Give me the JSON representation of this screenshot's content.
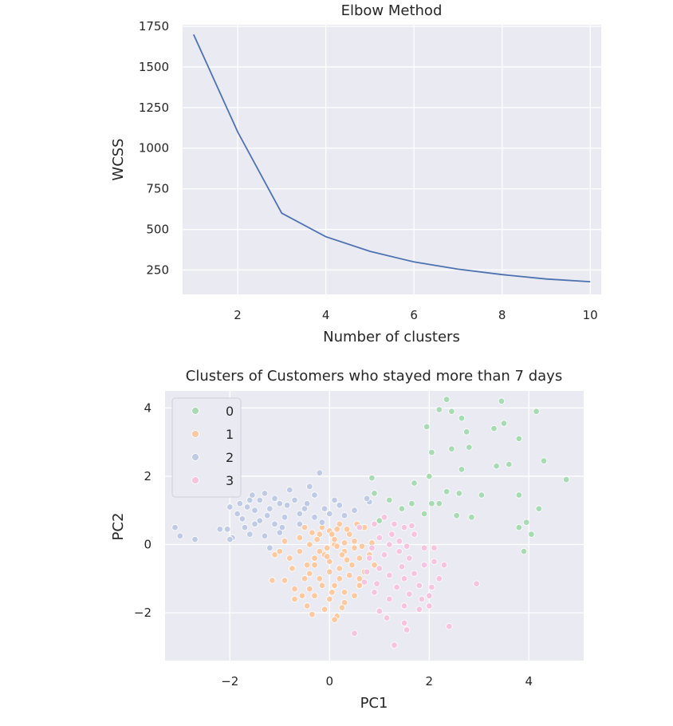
{
  "chart_data": [
    {
      "type": "line",
      "title": "Elbow Method",
      "xlabel": "Number of clusters",
      "ylabel": "WCSS",
      "xlim": [
        0.75,
        10.25
      ],
      "ylim": [
        100,
        1760
      ],
      "xticks": [
        2,
        4,
        6,
        8,
        10
      ],
      "yticks": [
        250,
        500,
        750,
        1000,
        1250,
        1500,
        1750
      ],
      "x": [
        1,
        2,
        3,
        4,
        5,
        6,
        7,
        8,
        9,
        10
      ],
      "values": [
        1700,
        1100,
        600,
        455,
        365,
        300,
        255,
        222,
        195,
        178
      ],
      "grid": true,
      "color": "#4c72b0"
    },
    {
      "type": "scatter",
      "title": "Clusters of Customers who stayed more than 7 days",
      "xlabel": "PC1",
      "ylabel": "PC2",
      "xlim": [
        -3.3,
        5.1
      ],
      "ylim": [
        -3.4,
        4.5
      ],
      "xticks": [
        -2,
        0,
        2,
        4
      ],
      "yticks": [
        -2,
        0,
        2,
        4
      ],
      "xtick_labels": [
        "−2",
        "0",
        "2",
        "4"
      ],
      "ytick_labels": [
        "−2",
        "0",
        "2",
        "4"
      ],
      "legend": {
        "placement": "upper-left",
        "labels": [
          "0",
          "1",
          "2",
          "3"
        ]
      },
      "grid": true,
      "series": [
        {
          "name": "0",
          "color": "#a8dbb4",
          "points": [
            [
              2.35,
              4.25
            ],
            [
              2.2,
              3.95
            ],
            [
              2.45,
              3.9
            ],
            [
              3.45,
              4.2
            ],
            [
              4.15,
              3.9
            ],
            [
              1.95,
              3.45
            ],
            [
              2.65,
              3.7
            ],
            [
              3.5,
              3.55
            ],
            [
              3.3,
              3.4
            ],
            [
              2.75,
              3.3
            ],
            [
              3.8,
              3.1
            ],
            [
              2.05,
              2.7
            ],
            [
              2.45,
              2.8
            ],
            [
              2.8,
              2.85
            ],
            [
              3.35,
              2.3
            ],
            [
              3.6,
              2.35
            ],
            [
              4.3,
              2.45
            ],
            [
              4.75,
              1.9
            ],
            [
              2.0,
              2.0
            ],
            [
              2.65,
              2.2
            ],
            [
              1.7,
              1.8
            ],
            [
              0.85,
              1.95
            ],
            [
              0.9,
              1.5
            ],
            [
              2.35,
              1.55
            ],
            [
              2.6,
              1.5
            ],
            [
              3.05,
              1.45
            ],
            [
              3.8,
              1.45
            ],
            [
              1.2,
              1.3
            ],
            [
              1.65,
              1.2
            ],
            [
              2.05,
              1.2
            ],
            [
              2.2,
              1.2
            ],
            [
              4.2,
              1.05
            ],
            [
              1.45,
              1.05
            ],
            [
              2.55,
              0.85
            ],
            [
              2.85,
              0.8
            ],
            [
              3.95,
              0.65
            ],
            [
              3.8,
              0.5
            ],
            [
              4.05,
              0.3
            ],
            [
              3.9,
              -0.2
            ],
            [
              1.0,
              0.7
            ],
            [
              1.9,
              0.9
            ]
          ]
        },
        {
          "name": "1",
          "color": "#fcc9a1",
          "points": [
            [
              0.0,
              0.4
            ],
            [
              0.2,
              0.6
            ],
            [
              -0.2,
              0.3
            ],
            [
              0.4,
              0.3
            ],
            [
              -0.4,
              0.0
            ],
            [
              0.1,
              0.0
            ],
            [
              0.3,
              -0.2
            ],
            [
              -0.1,
              -0.3
            ],
            [
              0.5,
              -0.1
            ],
            [
              -0.6,
              -0.2
            ],
            [
              0.0,
              -0.5
            ],
            [
              0.2,
              -0.7
            ],
            [
              -0.3,
              -0.6
            ],
            [
              0.6,
              -0.4
            ],
            [
              -0.8,
              -0.4
            ],
            [
              0.4,
              -0.9
            ],
            [
              -0.2,
              -1.0
            ],
            [
              0.1,
              -1.2
            ],
            [
              0.3,
              -1.4
            ],
            [
              -0.4,
              -1.3
            ],
            [
              0.0,
              -1.6
            ],
            [
              -0.1,
              -1.9
            ],
            [
              0.15,
              -2.1
            ],
            [
              -0.45,
              -1.8
            ],
            [
              0.7,
              0.5
            ],
            [
              0.5,
              0.1
            ],
            [
              -0.5,
              0.5
            ],
            [
              -0.9,
              0.1
            ],
            [
              -1.0,
              -0.2
            ],
            [
              -1.15,
              -1.05
            ],
            [
              -0.9,
              -1.05
            ],
            [
              -0.7,
              -1.3
            ],
            [
              0.6,
              -1.2
            ],
            [
              0.7,
              -0.8
            ],
            [
              0.8,
              -0.3
            ],
            [
              -0.25,
              0.15
            ],
            [
              0.05,
              0.3
            ],
            [
              -0.05,
              -0.1
            ],
            [
              0.25,
              -0.3
            ],
            [
              -0.3,
              -0.4
            ],
            [
              0.15,
              -0.05
            ],
            [
              0.35,
              0.45
            ],
            [
              -0.15,
              0.5
            ],
            [
              0.55,
              0.6
            ],
            [
              -0.6,
              0.2
            ],
            [
              -0.75,
              -0.7
            ],
            [
              -0.5,
              -1.0
            ],
            [
              -0.3,
              -1.5
            ],
            [
              0.3,
              -1.7
            ],
            [
              0.5,
              -1.5
            ],
            [
              0.0,
              -0.8
            ],
            [
              0.2,
              -1.0
            ],
            [
              -0.2,
              -0.2
            ],
            [
              0.45,
              -0.6
            ],
            [
              -0.45,
              -0.6
            ],
            [
              0.1,
              0.15
            ],
            [
              -0.05,
              -0.35
            ],
            [
              0.3,
              0.05
            ],
            [
              0.65,
              -0.05
            ],
            [
              -1.1,
              -0.3
            ],
            [
              -0.35,
              -2.05
            ],
            [
              0.1,
              -2.2
            ],
            [
              -0.7,
              -1.6
            ],
            [
              0.85,
              0.05
            ],
            [
              0.9,
              -0.6
            ],
            [
              0.25,
              -1.85
            ],
            [
              -0.55,
              -1.5
            ],
            [
              0.6,
              -1.0
            ],
            [
              -0.15,
              -1.2
            ],
            [
              0.15,
              0.45
            ],
            [
              -0.35,
              0.35
            ],
            [
              0.35,
              -0.45
            ],
            [
              -0.4,
              -0.85
            ],
            [
              0.05,
              -1.4
            ]
          ]
        },
        {
          "name": "2",
          "color": "#bfcbe4",
          "points": [
            [
              -2.0,
              1.1
            ],
            [
              -1.8,
              1.2
            ],
            [
              -1.6,
              1.3
            ],
            [
              -1.3,
              1.5
            ],
            [
              -1.85,
              0.9
            ],
            [
              -1.5,
              1.0
            ],
            [
              -1.2,
              1.05
            ],
            [
              -1.0,
              1.2
            ],
            [
              -0.8,
              1.6
            ],
            [
              -0.3,
              1.45
            ],
            [
              -0.2,
              2.1
            ],
            [
              -0.4,
              1.7
            ],
            [
              -0.7,
              1.3
            ],
            [
              -0.5,
              1.05
            ],
            [
              -0.1,
              1.05
            ],
            [
              0.2,
              1.15
            ],
            [
              0.5,
              1.0
            ],
            [
              0.8,
              1.25
            ],
            [
              0.75,
              1.35
            ],
            [
              -2.05,
              0.45
            ],
            [
              -1.7,
              0.5
            ],
            [
              -1.4,
              0.7
            ],
            [
              -1.1,
              0.6
            ],
            [
              -0.9,
              0.8
            ],
            [
              -0.6,
              0.9
            ],
            [
              -0.3,
              0.8
            ],
            [
              0.0,
              0.9
            ],
            [
              0.3,
              0.85
            ],
            [
              -1.95,
              0.2
            ],
            [
              -1.6,
              0.3
            ],
            [
              -1.3,
              0.25
            ],
            [
              -1.0,
              0.35
            ],
            [
              -3.1,
              0.5
            ],
            [
              -3.0,
              0.25
            ],
            [
              -2.7,
              0.15
            ],
            [
              -2.2,
              0.45
            ],
            [
              -2.0,
              0.15
            ],
            [
              -1.2,
              -0.1
            ],
            [
              -0.6,
              0.6
            ],
            [
              -1.5,
              0.6
            ],
            [
              -1.75,
              0.75
            ],
            [
              -1.1,
              1.35
            ],
            [
              -1.4,
              1.3
            ],
            [
              -0.95,
              0.5
            ],
            [
              -1.25,
              0.85
            ],
            [
              -1.65,
              1.1
            ],
            [
              -0.45,
              1.2
            ],
            [
              0.1,
              1.3
            ],
            [
              -1.55,
              1.45
            ],
            [
              -0.85,
              1.15
            ],
            [
              -0.15,
              0.65
            ]
          ]
        },
        {
          "name": "3",
          "color": "#f6c4df",
          "points": [
            [
              0.9,
              0.6
            ],
            [
              1.1,
              0.8
            ],
            [
              1.3,
              0.6
            ],
            [
              1.5,
              0.5
            ],
            [
              1.7,
              0.3
            ],
            [
              1.0,
              0.2
            ],
            [
              1.2,
              0.0
            ],
            [
              1.4,
              -0.2
            ],
            [
              1.6,
              -0.4
            ],
            [
              1.9,
              -0.1
            ],
            [
              2.1,
              -0.5
            ],
            [
              0.8,
              -0.4
            ],
            [
              1.0,
              -0.7
            ],
            [
              1.2,
              -0.9
            ],
            [
              1.5,
              -1.0
            ],
            [
              1.8,
              -1.2
            ],
            [
              2.0,
              -1.5
            ],
            [
              0.7,
              -1.1
            ],
            [
              0.9,
              -1.4
            ],
            [
              1.2,
              -1.6
            ],
            [
              1.5,
              -1.8
            ],
            [
              1.8,
              -1.9
            ],
            [
              2.0,
              -1.8
            ],
            [
              1.5,
              -2.3
            ],
            [
              1.55,
              -2.5
            ],
            [
              1.3,
              -2.95
            ],
            [
              0.5,
              -2.6
            ],
            [
              2.4,
              -2.4
            ],
            [
              2.95,
              -1.15
            ],
            [
              2.3,
              -0.6
            ],
            [
              2.1,
              -0.1
            ],
            [
              1.65,
              0.55
            ],
            [
              1.4,
              0.1
            ],
            [
              1.9,
              -0.6
            ],
            [
              1.1,
              -0.3
            ],
            [
              0.75,
              -0.8
            ],
            [
              1.35,
              -1.25
            ],
            [
              1.7,
              -0.85
            ],
            [
              1.0,
              -1.95
            ],
            [
              2.2,
              -1.0
            ],
            [
              0.6,
              0.5
            ],
            [
              1.25,
              0.3
            ],
            [
              1.55,
              -0.05
            ],
            [
              1.85,
              -1.6
            ],
            [
              1.15,
              -2.15
            ],
            [
              0.85,
              -0.1
            ],
            [
              1.45,
              -0.65
            ],
            [
              2.05,
              -1.25
            ],
            [
              0.95,
              -1.15
            ],
            [
              1.6,
              -1.45
            ]
          ]
        }
      ]
    }
  ]
}
